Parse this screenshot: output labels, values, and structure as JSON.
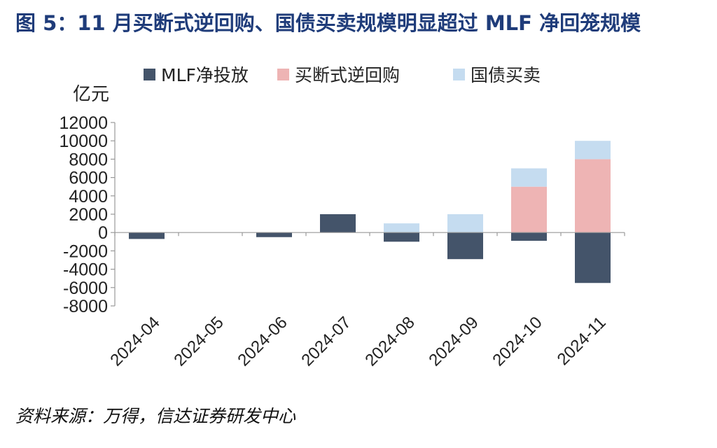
{
  "title": "图 5：11 月买断式逆回购、国债买卖规模明显超过 MLF 净回笼规模",
  "source": "资料来源：万得，信达证券研发中心",
  "chart_data": {
    "type": "bar",
    "stacked": true,
    "unit_label": "亿元",
    "categories": [
      "2024-04",
      "2024-05",
      "2024-06",
      "2024-07",
      "2024-08",
      "2024-09",
      "2024-10",
      "2024-11"
    ],
    "series": [
      {
        "name": "MLF净投放",
        "color": "#44546a",
        "values": [
          -700,
          0,
          -500,
          2000,
          -1000,
          -2900,
          -900,
          -5500
        ]
      },
      {
        "name": "买断式逆回购",
        "color": "#eeb4b4",
        "values": [
          0,
          0,
          0,
          0,
          0,
          0,
          5000,
          8000
        ]
      },
      {
        "name": "国债买卖",
        "color": "#c5dcf0",
        "values": [
          0,
          0,
          0,
          0,
          1000,
          2000,
          2000,
          2000
        ]
      }
    ],
    "ylim": [
      -8000,
      12000
    ],
    "yticks": [
      12000,
      10000,
      8000,
      6000,
      4000,
      2000,
      0,
      -2000,
      -4000,
      -6000,
      -8000
    ],
    "legend_position": "top",
    "grid": false
  }
}
